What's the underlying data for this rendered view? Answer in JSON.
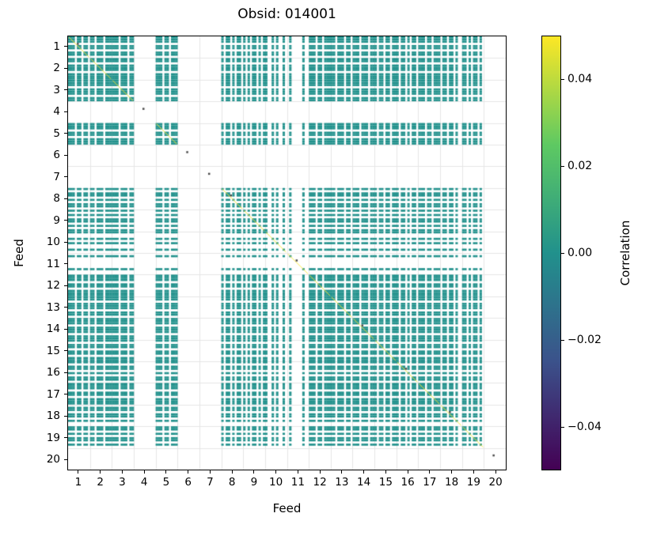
{
  "chart_data": {
    "type": "heatmap",
    "title": "Obsid: 014001",
    "xlabel": "Feed",
    "ylabel": "Feed",
    "x_ticks": [
      "1",
      "2",
      "3",
      "4",
      "5",
      "6",
      "7",
      "8",
      "9",
      "10",
      "11",
      "12",
      "13",
      "14",
      "15",
      "16",
      "17",
      "18",
      "19",
      "20"
    ],
    "y_ticks": [
      "1",
      "2",
      "3",
      "4",
      "5",
      "6",
      "7",
      "8",
      "9",
      "10",
      "11",
      "12",
      "13",
      "14",
      "15",
      "16",
      "17",
      "18",
      "19",
      "20"
    ],
    "n_feeds": 20,
    "subchannels_per_feed": 10,
    "description": "Feed-feed correlation matrix; teal cells are correlation values near 0.00; feeds 4, 6, 7 and 20 have no data; feed 11 is very sparse; feeds 8-10 are striped/partial.",
    "feed_masks": [
      [
        1,
        1,
        1,
        0,
        1,
        1,
        0,
        1,
        1,
        0
      ],
      [
        1,
        1,
        0,
        1,
        1,
        1,
        0,
        1,
        1,
        1
      ],
      [
        1,
        1,
        1,
        0,
        1,
        1,
        1,
        0,
        1,
        1
      ],
      [
        0,
        0,
        0,
        0,
        0,
        0,
        0,
        0,
        0,
        0
      ],
      [
        1,
        1,
        1,
        0,
        1,
        1,
        0,
        1,
        1,
        1
      ],
      [
        0,
        0,
        0,
        0,
        0,
        0,
        0,
        0,
        0,
        0
      ],
      [
        0,
        0,
        0,
        0,
        0,
        0,
        0,
        0,
        0,
        0
      ],
      [
        1,
        0,
        1,
        1,
        0,
        1,
        0,
        1,
        1,
        0
      ],
      [
        1,
        0,
        1,
        0,
        1,
        1,
        0,
        1,
        0,
        1
      ],
      [
        1,
        0,
        0,
        1,
        0,
        1,
        0,
        0,
        1,
        0
      ],
      [
        0,
        1,
        0,
        0,
        0,
        0,
        0,
        1,
        0,
        0
      ],
      [
        1,
        1,
        1,
        0,
        1,
        1,
        0,
        1,
        1,
        1
      ],
      [
        1,
        1,
        0,
        1,
        1,
        1,
        0,
        1,
        1,
        0
      ],
      [
        1,
        1,
        1,
        0,
        1,
        1,
        1,
        0,
        1,
        1
      ],
      [
        1,
        0,
        1,
        1,
        0,
        1,
        1,
        0,
        1,
        1
      ],
      [
        1,
        0,
        1,
        1,
        0,
        1,
        0,
        1,
        1,
        0
      ],
      [
        1,
        1,
        1,
        0,
        1,
        1,
        0,
        1,
        1,
        1
      ],
      [
        0,
        1,
        1,
        0,
        1,
        1,
        0,
        1,
        0,
        0
      ],
      [
        1,
        1,
        0,
        1,
        0,
        1,
        1,
        0,
        1,
        0
      ],
      [
        0,
        0,
        0,
        0,
        0,
        0,
        0,
        0,
        0,
        0
      ]
    ],
    "cell_color": "#21918c",
    "grid_color": "#e6e6e6",
    "diagonal_line_color": "#fde725",
    "diag_speck_feeds": [
      1,
      4,
      6,
      7,
      8,
      11,
      14,
      16,
      18,
      20
    ],
    "diag_speck_color": "#4a4a4a",
    "colorbar": {
      "label": "Correlation",
      "tick_labels": [
        "0.04",
        "0.02",
        "0.00",
        "−0.02",
        "−0.04"
      ],
      "tick_positions": [
        0.1,
        0.3,
        0.5,
        0.7,
        0.9
      ],
      "vmin": -0.05,
      "vmax": 0.05,
      "colormap": "viridis",
      "gradient_stops": [
        {
          "pos": 0.0,
          "color": "#440154"
        },
        {
          "pos": 0.25,
          "color": "#3b528b"
        },
        {
          "pos": 0.5,
          "color": "#21918c"
        },
        {
          "pos": 0.75,
          "color": "#5ec962"
        },
        {
          "pos": 1.0,
          "color": "#fde725"
        }
      ]
    }
  }
}
